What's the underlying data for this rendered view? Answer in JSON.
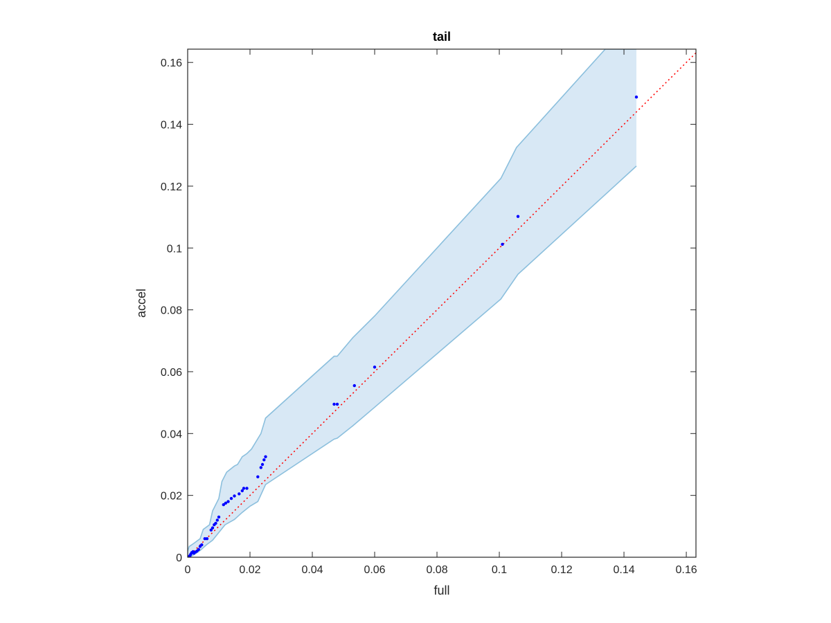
{
  "chart_data": {
    "type": "scatter",
    "title": "tail",
    "xlabel": "full",
    "ylabel": "accel",
    "xlim": [
      0,
      0.1631
    ],
    "ylim": [
      0,
      0.1643
    ],
    "xticks": [
      0,
      0.02,
      0.04,
      0.06,
      0.08,
      0.1,
      0.12,
      0.14,
      0.16
    ],
    "xtick_labels": [
      "0",
      "0.02",
      "0.04",
      "0.06",
      "0.08",
      "0.1",
      "0.12",
      "0.14",
      "0.16"
    ],
    "yticks": [
      0,
      0.02,
      0.04,
      0.06,
      0.08,
      0.1,
      0.12,
      0.14,
      0.16
    ],
    "ytick_labels": [
      "0",
      "0.02",
      "0.04",
      "0.06",
      "0.08",
      "0.1",
      "0.12",
      "0.14",
      "0.16"
    ],
    "grid": false,
    "colors": {
      "points": "#0000ff",
      "reference_line": "#ff0000",
      "band_fill": "#d8e8f5",
      "band_edge": "#8bbfdd",
      "axes": "#262626"
    },
    "reference_line": {
      "x": [
        0,
        0.1631
      ],
      "y": [
        0,
        0.1631
      ]
    },
    "band": {
      "upper": [
        [
          0,
          0.002
        ],
        [
          0.0005,
          0.0035
        ],
        [
          0.002,
          0.0045
        ],
        [
          0.004,
          0.006
        ],
        [
          0.005,
          0.009
        ],
        [
          0.007,
          0.0105
        ],
        [
          0.008,
          0.015
        ],
        [
          0.01,
          0.019
        ],
        [
          0.011,
          0.0245
        ],
        [
          0.0125,
          0.0275
        ],
        [
          0.015,
          0.0295
        ],
        [
          0.016,
          0.03
        ],
        [
          0.0175,
          0.0325
        ],
        [
          0.019,
          0.0335
        ],
        [
          0.0205,
          0.035
        ],
        [
          0.022,
          0.0375
        ],
        [
          0.0235,
          0.04
        ],
        [
          0.025,
          0.045
        ],
        [
          0.047,
          0.065
        ],
        [
          0.048,
          0.065
        ],
        [
          0.053,
          0.071
        ],
        [
          0.06,
          0.078
        ],
        [
          0.1005,
          0.1225
        ],
        [
          0.1055,
          0.1325
        ],
        [
          0.134,
          0.1643
        ],
        [
          0.144,
          0.1643
        ]
      ],
      "lower": [
        [
          0.144,
          0.1265
        ],
        [
          0.106,
          0.0915
        ],
        [
          0.1005,
          0.0835
        ],
        [
          0.06,
          0.0485
        ],
        [
          0.053,
          0.0425
        ],
        [
          0.048,
          0.0385
        ],
        [
          0.047,
          0.0382
        ],
        [
          0.025,
          0.0235
        ],
        [
          0.0225,
          0.018
        ],
        [
          0.02,
          0.0165
        ],
        [
          0.0175,
          0.0145
        ],
        [
          0.015,
          0.0122
        ],
        [
          0.012,
          0.0105
        ],
        [
          0.01,
          0.008
        ],
        [
          0.008,
          0.0055
        ],
        [
          0.006,
          0.004
        ],
        [
          0.004,
          0.0022
        ],
        [
          0.002,
          0.0008
        ],
        [
          0.0005,
          0
        ],
        [
          0,
          0
        ]
      ]
    },
    "points": [
      {
        "x": 0.0002,
        "y": 0.0001
      },
      {
        "x": 0.0005,
        "y": 0.0003
      },
      {
        "x": 0.0008,
        "y": 0.0006
      },
      {
        "x": 0.001,
        "y": 0.001
      },
      {
        "x": 0.0013,
        "y": 0.0015
      },
      {
        "x": 0.0017,
        "y": 0.0018
      },
      {
        "x": 0.002,
        "y": 0.0013
      },
      {
        "x": 0.0025,
        "y": 0.0017
      },
      {
        "x": 0.003,
        "y": 0.002
      },
      {
        "x": 0.0035,
        "y": 0.0025
      },
      {
        "x": 0.004,
        "y": 0.0035
      },
      {
        "x": 0.0045,
        "y": 0.004
      },
      {
        "x": 0.0055,
        "y": 0.006
      },
      {
        "x": 0.0062,
        "y": 0.006
      },
      {
        "x": 0.0075,
        "y": 0.0088
      },
      {
        "x": 0.008,
        "y": 0.0095
      },
      {
        "x": 0.0085,
        "y": 0.0105
      },
      {
        "x": 0.009,
        "y": 0.011
      },
      {
        "x": 0.0095,
        "y": 0.012
      },
      {
        "x": 0.01,
        "y": 0.013
      },
      {
        "x": 0.0115,
        "y": 0.017
      },
      {
        "x": 0.0122,
        "y": 0.0175
      },
      {
        "x": 0.013,
        "y": 0.018
      },
      {
        "x": 0.014,
        "y": 0.019
      },
      {
        "x": 0.015,
        "y": 0.0198
      },
      {
        "x": 0.0165,
        "y": 0.0205
      },
      {
        "x": 0.0175,
        "y": 0.0215
      },
      {
        "x": 0.018,
        "y": 0.0223
      },
      {
        "x": 0.019,
        "y": 0.0223
      },
      {
        "x": 0.0225,
        "y": 0.026
      },
      {
        "x": 0.0235,
        "y": 0.029
      },
      {
        "x": 0.024,
        "y": 0.03
      },
      {
        "x": 0.0245,
        "y": 0.0315
      },
      {
        "x": 0.025,
        "y": 0.0325
      },
      {
        "x": 0.047,
        "y": 0.0495
      },
      {
        "x": 0.048,
        "y": 0.0495
      },
      {
        "x": 0.0535,
        "y": 0.0555
      },
      {
        "x": 0.06,
        "y": 0.0615
      },
      {
        "x": 0.101,
        "y": 0.1012
      },
      {
        "x": 0.106,
        "y": 0.1102
      },
      {
        "x": 0.144,
        "y": 0.1488
      }
    ]
  }
}
